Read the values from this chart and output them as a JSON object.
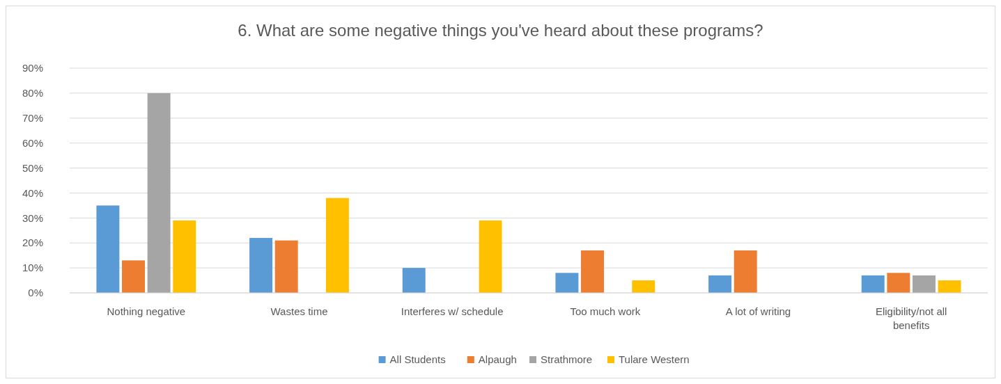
{
  "chart_data": {
    "type": "bar",
    "title": "6. What are some negative things you've heard about these programs?",
    "categories": [
      "Nothing negative",
      "Wastes time",
      "Interferes w/ schedule",
      "Too much work",
      "A lot of writing",
      "Eligibility/not all benefits"
    ],
    "series": [
      {
        "name": "All Students",
        "color": "#5b9bd5",
        "values": [
          35,
          22,
          10,
          8,
          7,
          7
        ]
      },
      {
        "name": "Alpaugh",
        "color": "#ed7d31",
        "values": [
          13,
          21,
          0,
          17,
          17,
          8
        ]
      },
      {
        "name": "Strathmore",
        "color": "#a5a5a5",
        "values": [
          80,
          0,
          0,
          0,
          0,
          7
        ]
      },
      {
        "name": "Tulare Western",
        "color": "#ffc000",
        "values": [
          29,
          38,
          29,
          5,
          0,
          5
        ]
      }
    ],
    "ylim": [
      0,
      90
    ],
    "yticks": [
      {
        "value": 0,
        "label": "0%"
      },
      {
        "value": 10,
        "label": "10%"
      },
      {
        "value": 20,
        "label": "20%"
      },
      {
        "value": 30,
        "label": "30%"
      },
      {
        "value": 40,
        "label": "40%"
      },
      {
        "value": 50,
        "label": "50%"
      },
      {
        "value": 60,
        "label": "60%"
      },
      {
        "value": 70,
        "label": "70%"
      },
      {
        "value": 80,
        "label": "80%"
      },
      {
        "value": 90,
        "label": "90%"
      }
    ],
    "grid": "y",
    "legend": "bottom"
  }
}
